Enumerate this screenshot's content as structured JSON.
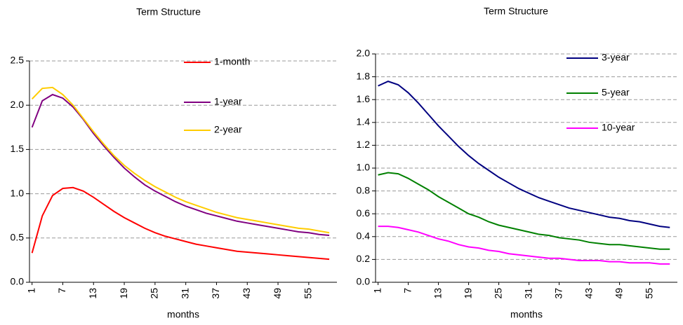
{
  "chart_data": [
    {
      "type": "line",
      "title": "Term Structure",
      "x_label": "months",
      "x": [
        1,
        3,
        5,
        7,
        9,
        11,
        13,
        15,
        17,
        19,
        21,
        23,
        25,
        27,
        29,
        31,
        33,
        35,
        37,
        39,
        41,
        43,
        45,
        47,
        49,
        51,
        53,
        55,
        57,
        59
      ],
      "xlim": [
        0.5,
        60.5
      ],
      "xticks": [
        1,
        7,
        13,
        19,
        25,
        31,
        37,
        43,
        49,
        55
      ],
      "ylim": [
        0,
        2.5
      ],
      "yticks": [
        {
          "value": 0,
          "label": "0.0"
        },
        0.5,
        {
          "value": 1,
          "label": "1.0"
        },
        1.5,
        {
          "value": 2,
          "label": "2.0"
        },
        2.5
      ],
      "grid": true,
      "series": [
        {
          "name": "1-month",
          "color": "#ff0000",
          "values": [
            0.33,
            0.75,
            0.98,
            1.06,
            1.07,
            1.03,
            0.96,
            0.88,
            0.8,
            0.73,
            0.67,
            0.61,
            0.56,
            0.52,
            0.49,
            0.46,
            0.43,
            0.41,
            0.39,
            0.37,
            0.35,
            0.34,
            0.33,
            0.32,
            0.31,
            0.3,
            0.29,
            0.28,
            0.27,
            0.26
          ]
        },
        {
          "name": "1-year",
          "color": "#800080",
          "values": [
            1.75,
            2.05,
            2.12,
            2.08,
            1.98,
            1.84,
            1.68,
            1.54,
            1.41,
            1.29,
            1.19,
            1.1,
            1.03,
            0.97,
            0.91,
            0.86,
            0.82,
            0.78,
            0.75,
            0.72,
            0.69,
            0.67,
            0.65,
            0.63,
            0.61,
            0.59,
            0.57,
            0.56,
            0.54,
            0.53
          ]
        },
        {
          "name": "2-year",
          "color": "#ffcc00",
          "values": [
            2.07,
            2.19,
            2.2,
            2.12,
            2.0,
            1.85,
            1.7,
            1.56,
            1.43,
            1.32,
            1.23,
            1.15,
            1.08,
            1.02,
            0.96,
            0.91,
            0.87,
            0.83,
            0.79,
            0.76,
            0.73,
            0.71,
            0.69,
            0.67,
            0.65,
            0.63,
            0.61,
            0.6,
            0.58,
            0.56
          ]
        }
      ]
    },
    {
      "type": "line",
      "title": "Term Structure",
      "x_label": "months",
      "x": [
        1,
        3,
        5,
        7,
        9,
        11,
        13,
        15,
        17,
        19,
        21,
        23,
        25,
        27,
        29,
        31,
        33,
        35,
        37,
        39,
        41,
        43,
        45,
        47,
        49,
        51,
        53,
        55,
        57,
        59
      ],
      "xlim": [
        0.5,
        60.5
      ],
      "xticks": [
        1,
        7,
        13,
        19,
        25,
        31,
        37,
        43,
        49,
        55
      ],
      "ylim": [
        0,
        2
      ],
      "yticks": [
        {
          "value": 0,
          "label": "0.0"
        },
        0.2,
        0.4,
        0.6,
        0.8,
        {
          "value": 1,
          "label": "1.0"
        },
        1.2,
        1.4,
        1.6,
        1.8,
        {
          "value": 2,
          "label": "2.0"
        }
      ],
      "grid": true,
      "series": [
        {
          "name": "3-year",
          "color": "#000080",
          "values": [
            1.72,
            1.76,
            1.73,
            1.66,
            1.57,
            1.47,
            1.37,
            1.28,
            1.19,
            1.11,
            1.04,
            0.98,
            0.92,
            0.87,
            0.82,
            0.78,
            0.74,
            0.71,
            0.68,
            0.65,
            0.63,
            0.61,
            0.59,
            0.57,
            0.56,
            0.54,
            0.53,
            0.51,
            0.49,
            0.48
          ]
        },
        {
          "name": "5-year",
          "color": "#008000",
          "values": [
            0.94,
            0.96,
            0.95,
            0.91,
            0.86,
            0.81,
            0.75,
            0.7,
            0.65,
            0.6,
            0.57,
            0.53,
            0.5,
            0.48,
            0.46,
            0.44,
            0.42,
            0.41,
            0.39,
            0.38,
            0.37,
            0.35,
            0.34,
            0.33,
            0.33,
            0.32,
            0.31,
            0.3,
            0.29,
            0.29
          ]
        },
        {
          "name": "10-year",
          "color": "#ff00ff",
          "values": [
            0.49,
            0.49,
            0.48,
            0.46,
            0.44,
            0.41,
            0.38,
            0.36,
            0.33,
            0.31,
            0.3,
            0.28,
            0.27,
            0.25,
            0.24,
            0.23,
            0.22,
            0.21,
            0.21,
            0.2,
            0.19,
            0.19,
            0.19,
            0.18,
            0.18,
            0.17,
            0.17,
            0.17,
            0.16,
            0.16
          ]
        }
      ]
    }
  ]
}
